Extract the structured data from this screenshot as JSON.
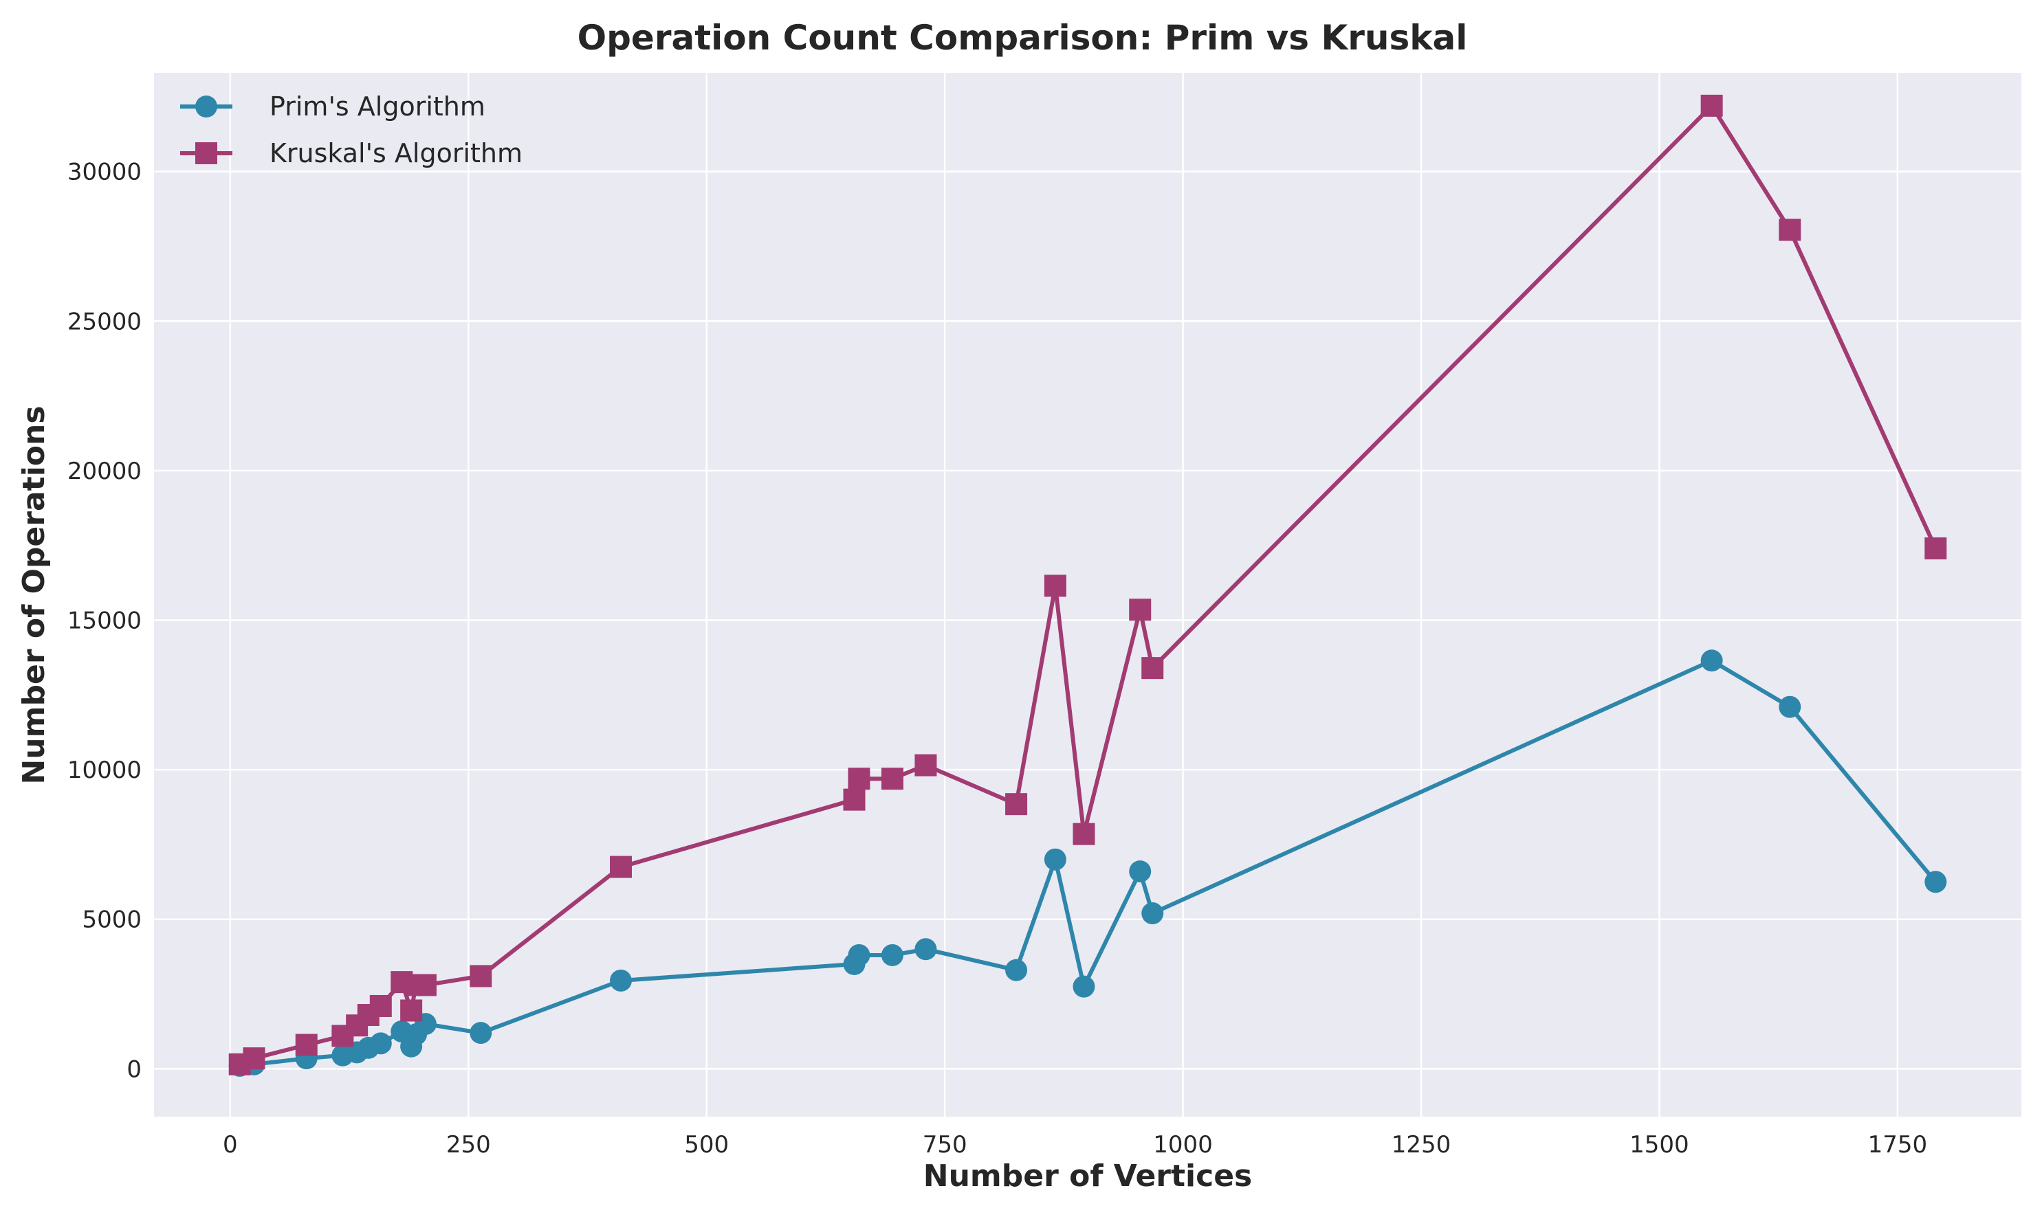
{
  "chart_data": {
    "type": "line",
    "title": "Operation Count Comparison: Prim vs Kruskal",
    "xlabel": "Number of Vertices",
    "ylabel": "Number of Operations",
    "xlim": [
      -80,
      1880
    ],
    "ylim": [
      -1600,
      33300
    ],
    "xticks": [
      0,
      250,
      500,
      750,
      1000,
      1250,
      1500,
      1750
    ],
    "yticks": [
      0,
      5000,
      10000,
      15000,
      20000,
      25000,
      30000
    ],
    "grid": true,
    "legend_position": "top-left",
    "background_color": "#eaeaf2",
    "series": [
      {
        "name": "Prim's Algorithm",
        "marker": "circle",
        "color": "#2e86ab",
        "points": [
          [
            10,
            100
          ],
          [
            25,
            150
          ],
          [
            80,
            350
          ],
          [
            118,
            450
          ],
          [
            133,
            550
          ],
          [
            145,
            700
          ],
          [
            158,
            850
          ],
          [
            180,
            1250
          ],
          [
            190,
            750
          ],
          [
            195,
            1150
          ],
          [
            205,
            1500
          ],
          [
            263,
            1200
          ],
          [
            410,
            2950
          ],
          [
            655,
            3500
          ],
          [
            660,
            3800
          ],
          [
            695,
            3800
          ],
          [
            730,
            4000
          ],
          [
            825,
            3300
          ],
          [
            866,
            7000
          ],
          [
            896,
            2750
          ],
          [
            955,
            6600
          ],
          [
            968,
            5200
          ],
          [
            1555,
            13650
          ],
          [
            1637,
            12100
          ],
          [
            1790,
            6250
          ]
        ]
      },
      {
        "name": "Kruskal's Algorithm",
        "marker": "square",
        "color": "#a23b72",
        "points": [
          [
            10,
            150
          ],
          [
            25,
            350
          ],
          [
            80,
            800
          ],
          [
            118,
            1100
          ],
          [
            133,
            1450
          ],
          [
            145,
            1800
          ],
          [
            158,
            2100
          ],
          [
            180,
            2900
          ],
          [
            190,
            1950
          ],
          [
            195,
            2800
          ],
          [
            205,
            2800
          ],
          [
            263,
            3100
          ],
          [
            410,
            6750
          ],
          [
            655,
            9000
          ],
          [
            660,
            9700
          ],
          [
            695,
            9700
          ],
          [
            730,
            10150
          ],
          [
            825,
            8850
          ],
          [
            866,
            16150
          ],
          [
            896,
            7850
          ],
          [
            955,
            15350
          ],
          [
            968,
            13400
          ],
          [
            1555,
            32200
          ],
          [
            1637,
            28050
          ],
          [
            1790,
            17400
          ]
        ]
      }
    ]
  }
}
